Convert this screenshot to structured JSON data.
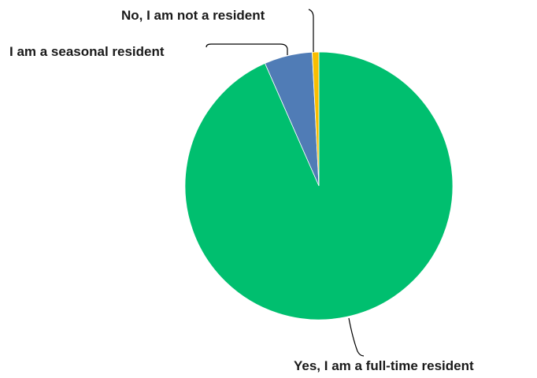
{
  "chart_data": {
    "type": "pie",
    "title": "",
    "start_angle_deg": 0,
    "direction": "clockwise",
    "slices": [
      {
        "label": "Yes, I am a full-time resident",
        "value": 93.4,
        "color": "#00bf6f"
      },
      {
        "label": "I am a seasonal resident",
        "value": 5.8,
        "color": "#507cb6"
      },
      {
        "label": "No, I am not a resident",
        "value": 0.8,
        "color": "#f9be00"
      }
    ]
  }
}
